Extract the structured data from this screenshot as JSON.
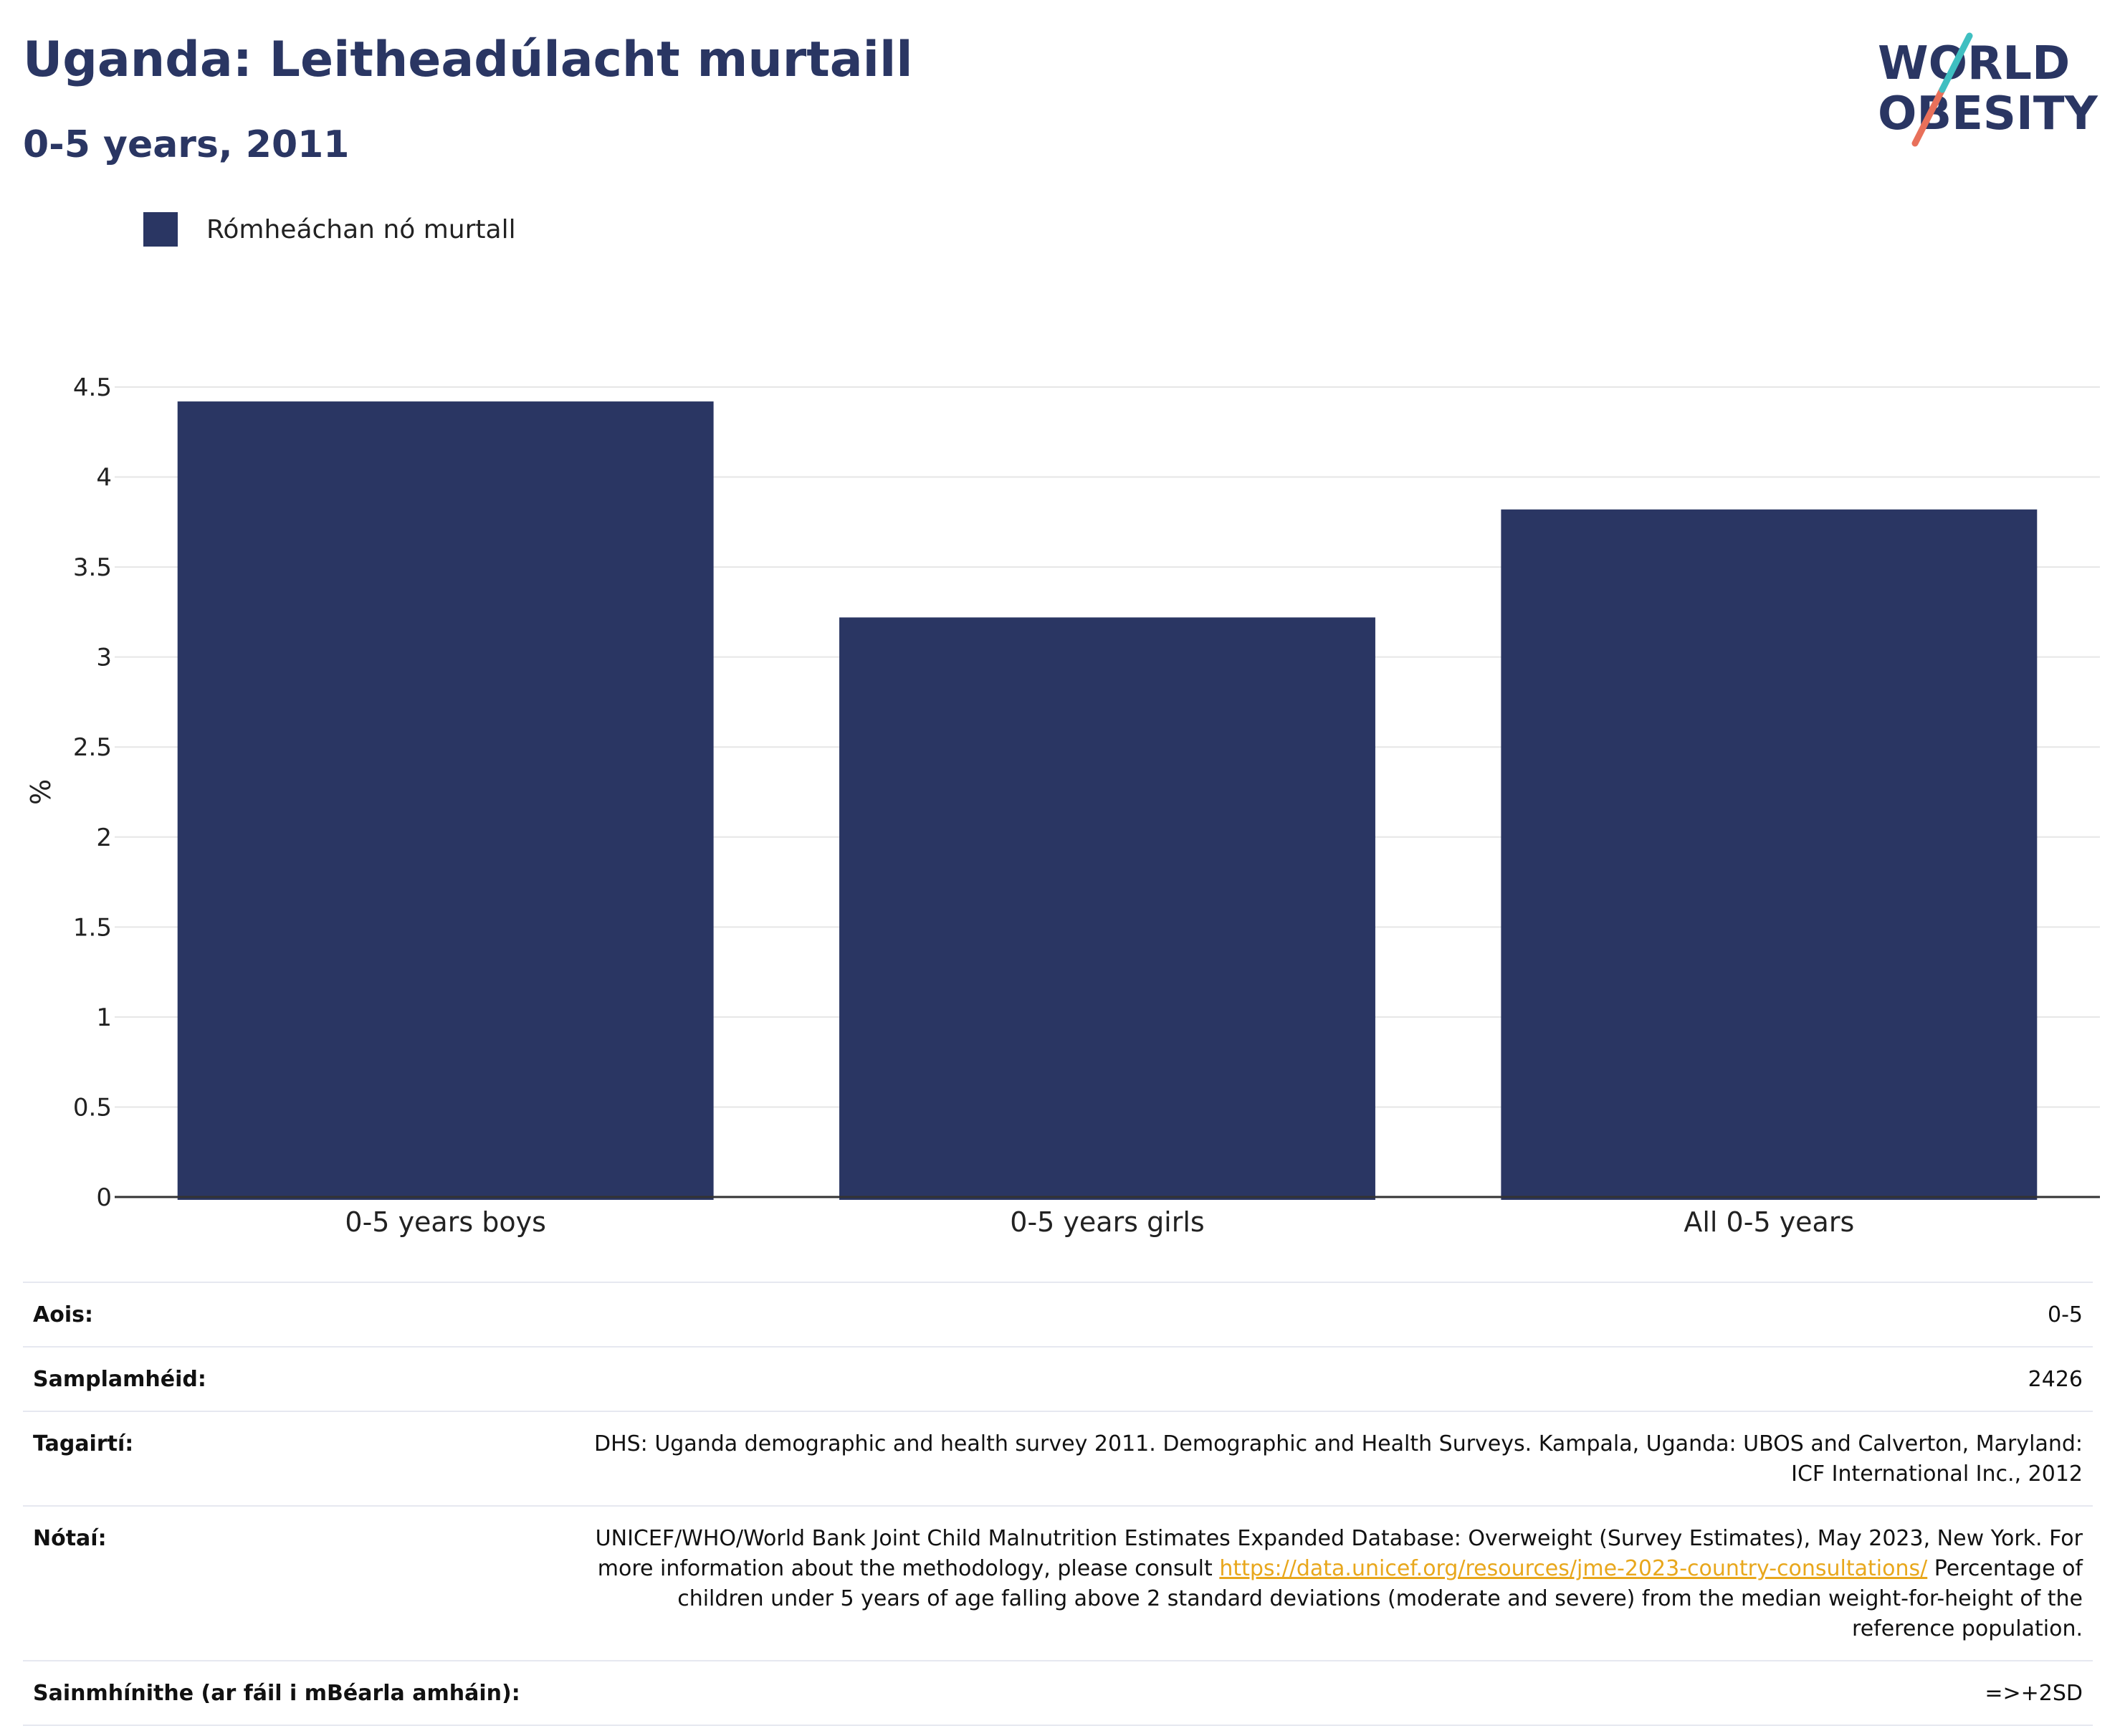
{
  "header": {
    "title": "Uganda: Leitheadúlacht murtaill",
    "subtitle": "0-5 years, 2011"
  },
  "logo": {
    "line1": "WORLD",
    "line2": "OBESITY"
  },
  "legend": {
    "label": "Rómheáchan nó murtall"
  },
  "chart_data": {
    "type": "bar",
    "categories": [
      "0-5 years boys",
      "0-5 years girls",
      "All 0-5 years"
    ],
    "series": [
      {
        "name": "Rómheáchan nó murtall",
        "values": [
          4.42,
          3.22,
          3.82
        ]
      }
    ],
    "ylabel": "%",
    "ylim": [
      0,
      4.5
    ],
    "yticks": [
      "0",
      "0.5",
      "1",
      "1.5",
      "2",
      "2.5",
      "3",
      "3.5",
      "4",
      "4.5"
    ],
    "grid": true,
    "color": "#2a3663"
  },
  "info": {
    "age_label": "Aois:",
    "age_value": "0-5",
    "sample_label": "Samplamhéid:",
    "sample_value": "2426",
    "refs_label": "Tagairtí:",
    "refs_value": "DHS: Uganda demographic and health survey 2011. Demographic and Health Surveys. Kampala, Uganda: UBOS and Calverton, Maryland: ICF International Inc., 2012",
    "notes_label": "Nótaí:",
    "notes_text1": "UNICEF/WHO/World Bank Joint Child Malnutrition Estimates Expanded Database: Overweight (Survey Estimates), May 2023, New York. For more information about the methodology, please consult",
    "notes_link": "https://data.unicef.org/resources/jme-2023-country-consultations/",
    "notes_text2": "Percentage of children under 5 years of age falling above 2 standard deviations (moderate and severe) from the median weight-for-height of the reference population.",
    "defs_label": "Sainmhínithe (ar fáil i mBéarla amháin):",
    "defs_value": "=>+2SD"
  }
}
